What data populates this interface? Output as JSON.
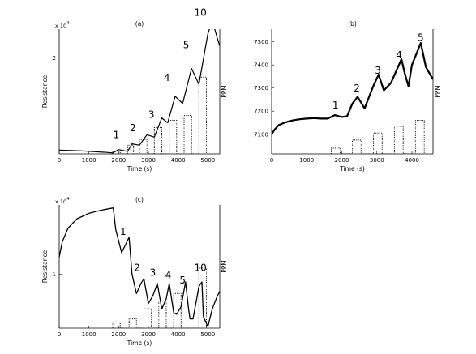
{
  "chart_data": [
    {
      "type": "line",
      "title": "(a)",
      "xlabel": "Time (s)",
      "ylabel": "Resistance",
      "y2label": "PPM",
      "y_multiplier": "x 10",
      "y_multiplier_exp": "4",
      "xlim": [
        0,
        5400
      ],
      "ylim": [
        0,
        2.6
      ],
      "xticks": [
        0,
        1000,
        2000,
        3000,
        4000,
        5000
      ],
      "yticks": [
        2
      ],
      "annotations": [
        {
          "label": "1",
          "x": 1920,
          "y": 0.33
        },
        {
          "label": "2",
          "x": 2480,
          "y": 0.47
        },
        {
          "label": "3",
          "x": 3100,
          "y": 0.75
        },
        {
          "label": "4",
          "x": 3620,
          "y": 1.52
        },
        {
          "label": "5",
          "x": 4270,
          "y": 2.2
        },
        {
          "label": "10",
          "x": 4750,
          "y": 2.88
        }
      ],
      "series": [
        {
          "style": "solid",
          "points": [
            [
              0,
              0.08
            ],
            [
              400,
              0.07
            ],
            [
              800,
              0.06
            ],
            [
              1200,
              0.045
            ],
            [
              1600,
              0.03
            ],
            [
              1800,
              0.02
            ],
            [
              2000,
              0.09
            ],
            [
              2300,
              0.05
            ],
            [
              2450,
              0.21
            ],
            [
              2700,
              0.18
            ],
            [
              2950,
              0.4
            ],
            [
              3200,
              0.35
            ],
            [
              3450,
              0.75
            ],
            [
              3650,
              0.65
            ],
            [
              3900,
              1.2
            ],
            [
              4150,
              1.05
            ],
            [
              4450,
              1.78
            ],
            [
              4700,
              1.45
            ],
            [
              5000,
              2.5
            ],
            [
              5150,
              2.78
            ],
            [
              5300,
              2.45
            ],
            [
              5400,
              2.25
            ]
          ]
        },
        {
          "style": "dotted",
          "points": [
            [
              1800,
              0
            ],
            [
              1800,
              0.055
            ],
            [
              2050,
              0.055
            ],
            [
              2050,
              0
            ],
            [
              2300,
              0
            ],
            [
              2300,
              0.18
            ],
            [
              2500,
              0.18
            ],
            [
              2500,
              0
            ],
            [
              2700,
              0
            ],
            [
              2700,
              0.3
            ],
            [
              2950,
              0.3
            ],
            [
              2950,
              0
            ],
            [
              3200,
              0
            ],
            [
              3200,
              0.55
            ],
            [
              3450,
              0.55
            ],
            [
              3450,
              0
            ],
            [
              3700,
              0
            ],
            [
              3700,
              0.7
            ],
            [
              3950,
              0.7
            ],
            [
              3950,
              0
            ],
            [
              4200,
              0
            ],
            [
              4200,
              0.8
            ],
            [
              4450,
              0.8
            ],
            [
              4450,
              0
            ],
            [
              4700,
              0
            ],
            [
              4700,
              1.6
            ],
            [
              4950,
              1.6
            ],
            [
              4950,
              0
            ]
          ]
        }
      ]
    },
    {
      "type": "line",
      "title": "(b)",
      "xlabel": "Time (s)",
      "ylabel": "",
      "y2label": "PPM",
      "xlim": [
        0,
        4600
      ],
      "ylim": [
        7015,
        7555
      ],
      "xticks": [
        0,
        1000,
        2000,
        3000,
        4000
      ],
      "yticks": [
        7100,
        7200,
        7300,
        7400,
        7500
      ],
      "annotations": [
        {
          "label": "1",
          "x": 1820,
          "y": 7212
        },
        {
          "label": "2",
          "x": 2430,
          "y": 7285
        },
        {
          "label": "3",
          "x": 3030,
          "y": 7362
        },
        {
          "label": "4",
          "x": 3630,
          "y": 7428
        },
        {
          "label": "5",
          "x": 4250,
          "y": 7505
        }
      ],
      "series": [
        {
          "style": "solid",
          "points": [
            [
              0,
              7100
            ],
            [
              80,
              7120
            ],
            [
              200,
              7140
            ],
            [
              400,
              7152
            ],
            [
              600,
              7160
            ],
            [
              800,
              7165
            ],
            [
              1000,
              7168
            ],
            [
              1200,
              7170
            ],
            [
              1400,
              7168
            ],
            [
              1600,
              7168
            ],
            [
              1800,
              7183
            ],
            [
              2000,
              7175
            ],
            [
              2150,
              7178
            ],
            [
              2300,
              7232
            ],
            [
              2450,
              7262
            ],
            [
              2650,
              7212
            ],
            [
              2900,
              7310
            ],
            [
              3050,
              7358
            ],
            [
              3200,
              7290
            ],
            [
              3400,
              7322
            ],
            [
              3700,
              7425
            ],
            [
              3800,
              7360
            ],
            [
              3900,
              7308
            ],
            [
              4000,
              7400
            ],
            [
              4250,
              7495
            ],
            [
              4400,
              7390
            ],
            [
              4600,
              7338
            ]
          ]
        },
        {
          "style": "dotted",
          "points": [
            [
              1700,
              7015
            ],
            [
              1700,
              7040
            ],
            [
              1950,
              7040
            ],
            [
              1950,
              7015
            ],
            [
              2300,
              7015
            ],
            [
              2300,
              7075
            ],
            [
              2550,
              7075
            ],
            [
              2550,
              7015
            ],
            [
              2900,
              7015
            ],
            [
              2900,
              7105
            ],
            [
              3150,
              7105
            ],
            [
              3150,
              7015
            ],
            [
              3500,
              7015
            ],
            [
              3500,
              7135
            ],
            [
              3750,
              7135
            ],
            [
              3750,
              7015
            ],
            [
              4100,
              7015
            ],
            [
              4100,
              7160
            ],
            [
              4350,
              7160
            ],
            [
              4350,
              7015
            ]
          ]
        }
      ]
    },
    {
      "type": "line",
      "title": "(c)",
      "xlabel": "Time (s)",
      "ylabel": "Resistance",
      "y2label": "PPM",
      "y_multiplier": "x 10",
      "y_multiplier_exp": "4",
      "xlim": [
        0,
        5400
      ],
      "ylim": [
        0.3,
        1.9
      ],
      "xticks": [
        0,
        1000,
        2000,
        3000,
        4000,
        5000
      ],
      "yticks": [
        1
      ],
      "annotations": [
        {
          "label": "1",
          "x": 2150,
          "y": 1.51
        },
        {
          "label": "2",
          "x": 2620,
          "y": 1.04
        },
        {
          "label": "3",
          "x": 3150,
          "y": 0.98
        },
        {
          "label": "4",
          "x": 3670,
          "y": 0.95
        },
        {
          "label": "5",
          "x": 4150,
          "y": 0.88
        },
        {
          "label": "10",
          "x": 4750,
          "y": 1.04
        }
      ],
      "series": [
        {
          "style": "solid",
          "points": [
            [
              0,
              1.22
            ],
            [
              100,
              1.42
            ],
            [
              300,
              1.6
            ],
            [
              600,
              1.72
            ],
            [
              1000,
              1.79
            ],
            [
              1400,
              1.83
            ],
            [
              1800,
              1.86
            ],
            [
              1820,
              1.86
            ],
            [
              1900,
              1.58
            ],
            [
              2100,
              1.28
            ],
            [
              2250,
              1.4
            ],
            [
              2350,
              1.48
            ],
            [
              2450,
              1.0
            ],
            [
              2600,
              0.75
            ],
            [
              2750,
              0.88
            ],
            [
              2850,
              0.94
            ],
            [
              3000,
              0.62
            ],
            [
              3150,
              0.72
            ],
            [
              3300,
              0.88
            ],
            [
              3450,
              0.55
            ],
            [
              3600,
              0.68
            ],
            [
              3700,
              0.88
            ],
            [
              3850,
              0.5
            ],
            [
              3950,
              0.48
            ],
            [
              4100,
              0.58
            ],
            [
              4250,
              0.9
            ],
            [
              4350,
              0.55
            ],
            [
              4400,
              0.42
            ],
            [
              4500,
              0.42
            ],
            [
              4700,
              0.84
            ],
            [
              4800,
              0.9
            ],
            [
              4850,
              0.45
            ],
            [
              5000,
              0.32
            ],
            [
              5150,
              0.55
            ],
            [
              5300,
              0.7
            ],
            [
              5400,
              0.78
            ]
          ]
        },
        {
          "style": "dotted",
          "points": [
            [
              1800,
              0.3
            ],
            [
              1800,
              0.38
            ],
            [
              2050,
              0.38
            ],
            [
              2050,
              0.3
            ],
            [
              2350,
              0.3
            ],
            [
              2350,
              0.42
            ],
            [
              2600,
              0.42
            ],
            [
              2600,
              0.3
            ],
            [
              2850,
              0.3
            ],
            [
              2850,
              0.55
            ],
            [
              3100,
              0.55
            ],
            [
              3100,
              0.3
            ],
            [
              3350,
              0.3
            ],
            [
              3350,
              0.65
            ],
            [
              3600,
              0.65
            ],
            [
              3600,
              0.3
            ],
            [
              3850,
              0.3
            ],
            [
              3850,
              0.75
            ],
            [
              4100,
              0.75
            ],
            [
              4100,
              0.3
            ],
            [
              4700,
              0.3
            ],
            [
              4700,
              1.08
            ],
            [
              4950,
              1.08
            ],
            [
              4950,
              0.3
            ]
          ]
        }
      ]
    }
  ]
}
